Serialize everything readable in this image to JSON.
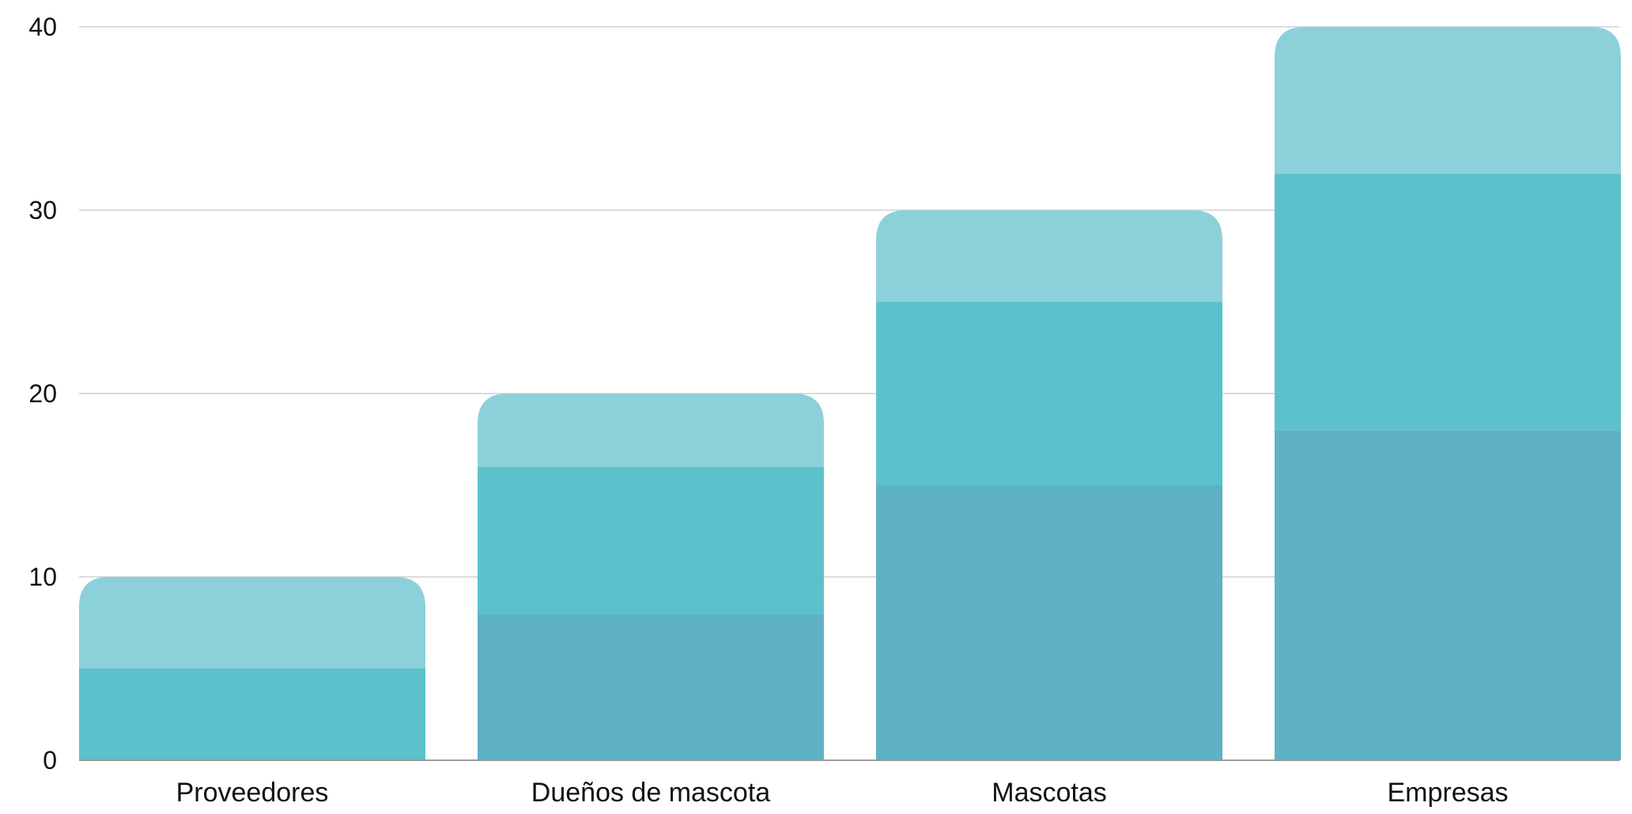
{
  "chart_data": {
    "type": "bar",
    "stacked": true,
    "categories": [
      "Proveedores",
      "Dueños de mascota",
      "Mascotas",
      "Empresas"
    ],
    "series": [
      {
        "values": [
          0,
          8,
          15,
          18
        ],
        "color": "#5eb2c3"
      },
      {
        "values": [
          5,
          8,
          10,
          14
        ],
        "color": "#5bc1cb"
      },
      {
        "values": [
          5,
          4,
          5,
          8
        ],
        "color": "#8cd1da"
      }
    ],
    "yticks": [
      0,
      10,
      20,
      30,
      40
    ],
    "ylim": [
      0,
      40
    ],
    "grid": true,
    "legend": "none"
  }
}
